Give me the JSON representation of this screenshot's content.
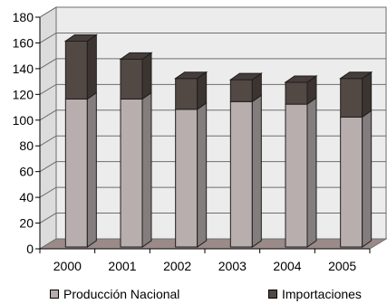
{
  "chart_data": {
    "type": "bar",
    "stacked": true,
    "style": "3d",
    "categories": [
      "2000",
      "2001",
      "2002",
      "2003",
      "2004",
      "2005"
    ],
    "series": [
      {
        "name": "Producción Nacional",
        "values": [
          115,
          115,
          107,
          113,
          111,
          101
        ],
        "color": "#b8aeae"
      },
      {
        "name": "Importaciones",
        "values": [
          45,
          31,
          24,
          17,
          17,
          30
        ],
        "color": "#524844"
      }
    ],
    "ylim": [
      0,
      180
    ],
    "yticks": [
      "0",
      "20",
      "40",
      "60",
      "80",
      "100",
      "120",
      "140",
      "160",
      "180"
    ],
    "grid": true,
    "legend_position": "bottom"
  }
}
